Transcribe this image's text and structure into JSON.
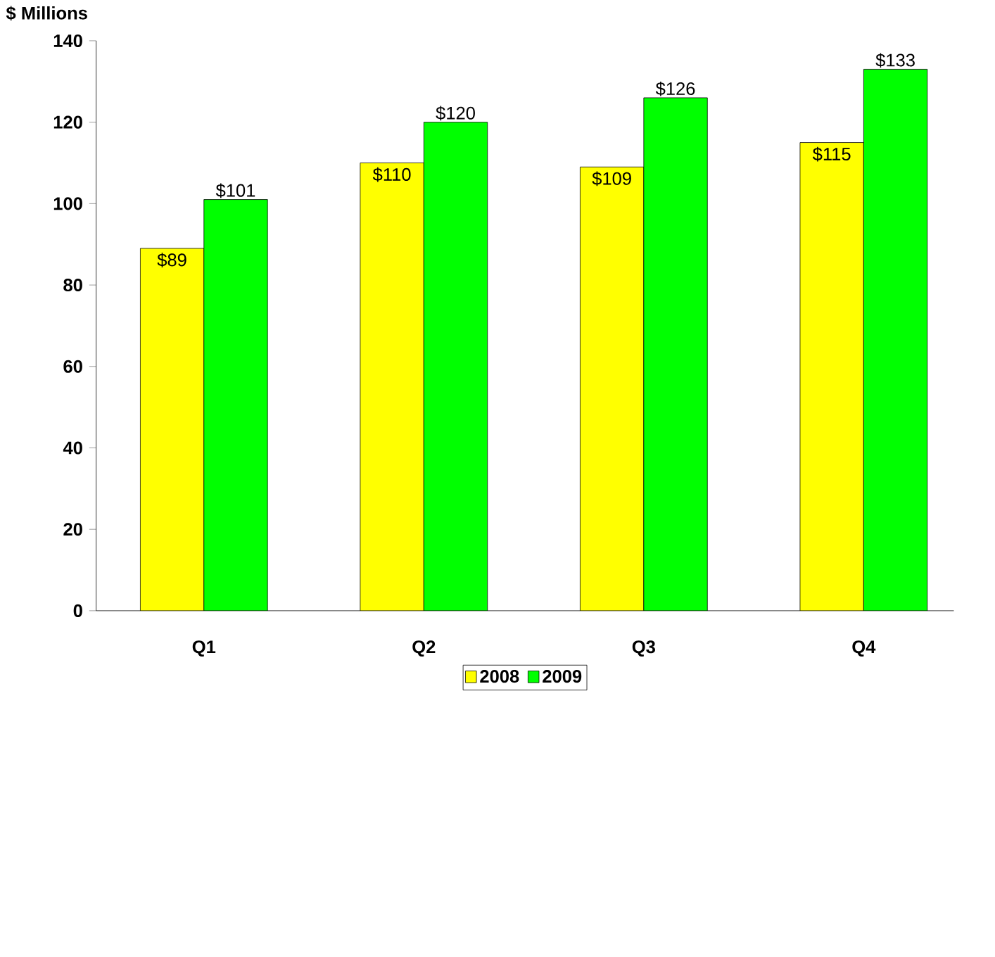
{
  "chart_data": {
    "type": "bar",
    "ylabel": "$ Millions",
    "categories": [
      "Q1",
      "Q2",
      "Q3",
      "Q4"
    ],
    "series": [
      {
        "name": "2008",
        "color": "#ffff00",
        "values": [
          89,
          110,
          109,
          115
        ],
        "value_labels": [
          "$89",
          "$110",
          "$109",
          "$115"
        ]
      },
      {
        "name": "2009",
        "color": "#00ff00",
        "values": [
          101,
          120,
          126,
          133
        ],
        "value_labels": [
          "$101",
          "$120",
          "$126",
          "$133"
        ]
      }
    ],
    "ylim": [
      0,
      140
    ],
    "yticks": [
      0,
      20,
      40,
      60,
      80,
      100,
      120,
      140
    ],
    "grid": false,
    "legend": "bottom"
  }
}
